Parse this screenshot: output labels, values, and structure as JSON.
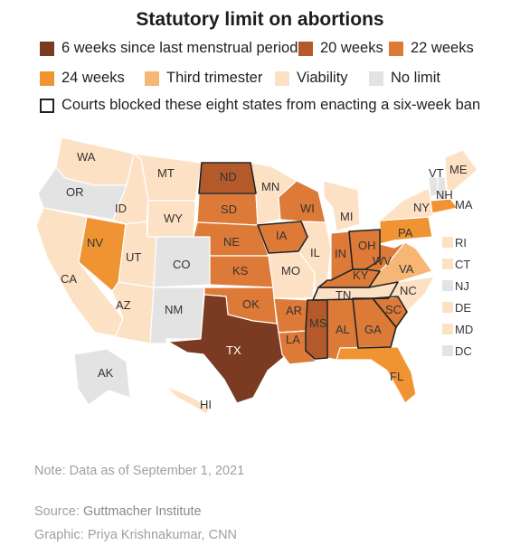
{
  "title": "Statutory limit on abortions",
  "colors": {
    "six_weeks": "#7a3b22",
    "twenty_weeks": "#b45a2a",
    "twenty_two_weeks": "#de7a38",
    "twenty_four_weeks": "#f09433",
    "third_trimester": "#f6b676",
    "viability": "#fde1c4",
    "no_limit": "#e3e3e3",
    "outline": "#222222"
  },
  "legend": [
    {
      "label": "6 weeks since last menstrual period",
      "color": "#7a3b22"
    },
    {
      "label": "20 weeks",
      "color": "#b45a2a"
    },
    {
      "label": "22 weeks",
      "color": "#de7a38"
    },
    {
      "label": "24 weeks",
      "color": "#f09433"
    },
    {
      "label": "Third trimester",
      "color": "#f6b676"
    },
    {
      "label": "Viability",
      "color": "#fde1c4"
    },
    {
      "label": "No limit",
      "color": "#e3e3e3"
    },
    {
      "label": "Courts blocked these eight states from enacting a six-week ban",
      "color": "outline"
    }
  ],
  "states": {
    "WA": "viability",
    "OR": "no_limit",
    "CA": "viability",
    "NV": "twenty_four_weeks",
    "ID": "viability",
    "MT": "viability",
    "WY": "viability",
    "UT": "viability",
    "AZ": "viability",
    "CO": "no_limit",
    "NM": "no_limit",
    "ND": "twenty_weeks",
    "SD": "twenty_two_weeks",
    "NE": "twenty_two_weeks",
    "KS": "twenty_two_weeks",
    "OK": "twenty_two_weeks",
    "TX": "six_weeks",
    "MN": "viability",
    "IA": "twenty_two_weeks",
    "MO": "viability",
    "AR": "twenty_two_weeks",
    "LA": "twenty_two_weeks",
    "WI": "twenty_two_weeks",
    "IL": "viability",
    "MI": "viability",
    "IN": "twenty_two_weeks",
    "OH": "twenty_two_weeks",
    "KY": "twenty_two_weeks",
    "TN": "viability",
    "MS": "twenty_weeks",
    "AL": "twenty_two_weeks",
    "GA": "twenty_two_weeks",
    "FL": "twenty_four_weeks",
    "SC": "twenty_two_weeks",
    "NC": "viability",
    "VA": "third_trimester",
    "WV": "twenty_two_weeks",
    "PA": "twenty_four_weeks",
    "NY": "viability",
    "VT": "no_limit",
    "NH": "no_limit",
    "ME": "viability",
    "MA": "twenty_four_weeks",
    "RI": "viability",
    "CT": "viability",
    "NJ": "no_limit",
    "DE": "viability",
    "MD": "viability",
    "DC": "no_limit",
    "AK": "no_limit",
    "HI": "viability"
  },
  "courts_blocked": [
    "ND",
    "IA",
    "OH",
    "KY",
    "TN",
    "MS",
    "GA",
    "SC"
  ],
  "small_states": [
    "RI",
    "CT",
    "NJ",
    "DE",
    "MD",
    "DC"
  ],
  "map_labels": {
    "WA": "WA",
    "OR": "OR",
    "CA": "CA",
    "NV": "NV",
    "ID": "ID",
    "MT": "MT",
    "WY": "WY",
    "UT": "UT",
    "AZ": "AZ",
    "CO": "CO",
    "NM": "NM",
    "ND": "ND",
    "SD": "SD",
    "NE": "NE",
    "KS": "KS",
    "OK": "OK",
    "TX": "TX",
    "MN": "MN",
    "IA": "IA",
    "MO": "MO",
    "AR": "AR",
    "LA": "LA",
    "WI": "WI",
    "IL": "IL",
    "MI": "MI",
    "IN": "IN",
    "OH": "OH",
    "KY": "KY",
    "TN": "TN",
    "MS": "MS",
    "AL": "AL",
    "GA": "GA",
    "FL": "FL",
    "SC": "SC",
    "NC": "NC",
    "VA": "VA",
    "WV": "WV",
    "PA": "PA",
    "NY": "NY",
    "VT": "VT",
    "NH": "NH",
    "ME": "ME",
    "MA": "MA",
    "AK": "AK",
    "HI": "HI",
    "RI": "RI",
    "CT": "CT",
    "NJ": "NJ",
    "DE": "DE",
    "MD": "MD",
    "DC": "DC"
  },
  "note": "Note: Data as of September 1, 2021",
  "source_label": "Source: ",
  "source_value": "Guttmacher Institute",
  "graphic_label": "Graphic: ",
  "graphic_value": "Priya Krishnakumar, CNN"
}
